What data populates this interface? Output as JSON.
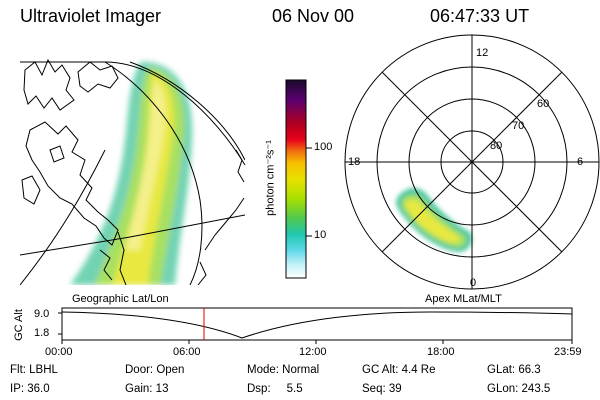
{
  "header": {
    "instrument": "Ultraviolet Imager",
    "date": "06 Nov 00",
    "time": "06:47:33 UT"
  },
  "colorbar": {
    "unit_label": "photon cm⁻²s⁻¹",
    "ticks": [
      "100",
      "10"
    ],
    "colors": [
      "#1a0a2a",
      "#5a0070",
      "#b00020",
      "#e8001a",
      "#f07010",
      "#f8c000",
      "#e8e000",
      "#a8e000",
      "#50c850",
      "#20c8b0",
      "#60d8e8",
      "#c0f0f8",
      "#ffffff"
    ]
  },
  "polar": {
    "top_label": "12",
    "left_label": "18",
    "right_label": "6",
    "bottom_label": "0",
    "ring_labels": [
      "60",
      "70",
      "80"
    ]
  },
  "panel_labels": {
    "left": "Geographic Lat/Lon",
    "right": "Apex MLat/MLT"
  },
  "alt_plot": {
    "axis_label": "GC Alt",
    "y_ticks": [
      "9.0",
      "1.8"
    ],
    "x_ticks": [
      "00:00",
      "06:00",
      "12:00",
      "18:00",
      "23:59"
    ],
    "marker_time": "06:47"
  },
  "footer": {
    "col1": [
      "Flt: LBHL",
      "IP: 36.0"
    ],
    "col2": [
      "Door: Open",
      "Gain: 13"
    ],
    "col3": [
      "Mode: Normal",
      "Dsp:     5.5"
    ],
    "col4": [
      "GC Alt: 4.4 Re",
      "Seq: 39"
    ],
    "col5": [
      "GLat: 66.3",
      "GLon: 243.5"
    ]
  }
}
